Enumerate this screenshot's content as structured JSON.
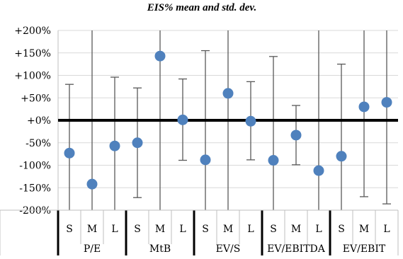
{
  "chart_data": {
    "type": "scatter",
    "title": "EIS% mean and std. dev.",
    "xlabel": "",
    "ylabel": "",
    "ylim": [
      -200,
      200
    ],
    "y_ticks": [
      200,
      150,
      100,
      50,
      0,
      -50,
      -100,
      -150,
      -200
    ],
    "y_tick_labels": [
      "+200%",
      "+150%",
      "+100%",
      "+50%",
      "+0%",
      "-50%",
      "-100%",
      "-150%",
      "-200%"
    ],
    "grid": true,
    "legend": "none",
    "marker_color": "#4f81bd",
    "groups": [
      {
        "label": "P/E",
        "categories": [
          "S",
          "M",
          "L"
        ],
        "points": [
          {
            "category": "S",
            "mean": -73,
            "upper": 80,
            "lower": -200
          },
          {
            "category": "M",
            "mean": -142,
            "upper": 200,
            "lower": -200
          },
          {
            "category": "L",
            "mean": -57,
            "upper": 96,
            "lower": -200
          }
        ]
      },
      {
        "label": "MtB",
        "categories": [
          "S",
          "M",
          "L"
        ],
        "points": [
          {
            "category": "S",
            "mean": -50,
            "upper": 72,
            "lower": -172
          },
          {
            "category": "M",
            "mean": 143,
            "upper": 200,
            "lower": -200
          },
          {
            "category": "L",
            "mean": 1,
            "upper": 92,
            "lower": -89
          }
        ]
      },
      {
        "label": "EV/S",
        "categories": [
          "S",
          "M",
          "L"
        ],
        "points": [
          {
            "category": "S",
            "mean": -88,
            "upper": 155,
            "lower": -200
          },
          {
            "category": "M",
            "mean": 60,
            "upper": 200,
            "lower": -200
          },
          {
            "category": "L",
            "mean": -2,
            "upper": 86,
            "lower": -88
          }
        ]
      },
      {
        "label": "EV/EBITDA",
        "categories": [
          "S",
          "M",
          "L"
        ],
        "points": [
          {
            "category": "S",
            "mean": -89,
            "upper": 142,
            "lower": -200
          },
          {
            "category": "M",
            "mean": -33,
            "upper": 33,
            "lower": -99
          },
          {
            "category": "L",
            "mean": -112,
            "upper": 200,
            "lower": -200
          }
        ]
      },
      {
        "label": "EV/EBIT",
        "categories": [
          "S",
          "M",
          "L"
        ],
        "points": [
          {
            "category": "S",
            "mean": -80,
            "upper": 125,
            "lower": -200
          },
          {
            "category": "M",
            "mean": 30,
            "upper": 200,
            "lower": -170
          },
          {
            "category": "L",
            "mean": 40,
            "upper": 200,
            "lower": -186
          }
        ]
      }
    ]
  }
}
